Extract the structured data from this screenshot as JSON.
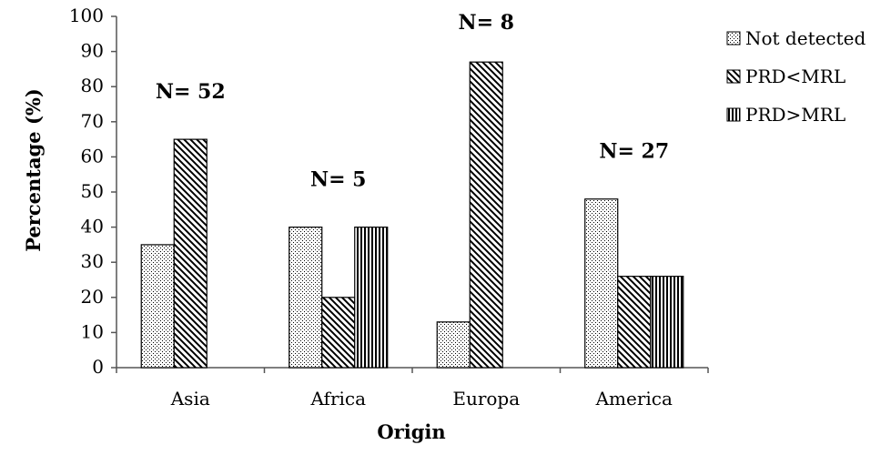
{
  "chart_data": {
    "type": "bar",
    "categories": [
      "Asia",
      "Africa",
      "Europa",
      "America"
    ],
    "series": [
      {
        "name": "Not detected",
        "values": [
          35,
          40,
          13,
          48
        ],
        "pattern": "dots"
      },
      {
        "name": "PRD<MRL",
        "values": [
          65,
          20,
          87,
          26
        ],
        "pattern": "diagonal"
      },
      {
        "name": "PRD>MRL",
        "values": [
          0,
          40,
          0,
          26
        ],
        "pattern": "vertical"
      }
    ],
    "annotations": [
      "N= 52",
      "N= 5",
      "N= 8",
      "N= 27"
    ],
    "xlabel": "Origin",
    "ylabel": "Percentage (%)",
    "ylim": [
      0,
      100
    ],
    "yticks": [
      0,
      10,
      20,
      30,
      40,
      50,
      60,
      70,
      80,
      90,
      100
    ],
    "legend_position": "right",
    "grid": false,
    "colors": {
      "bar_fill": "#ffffff",
      "stroke": "#000000"
    }
  }
}
